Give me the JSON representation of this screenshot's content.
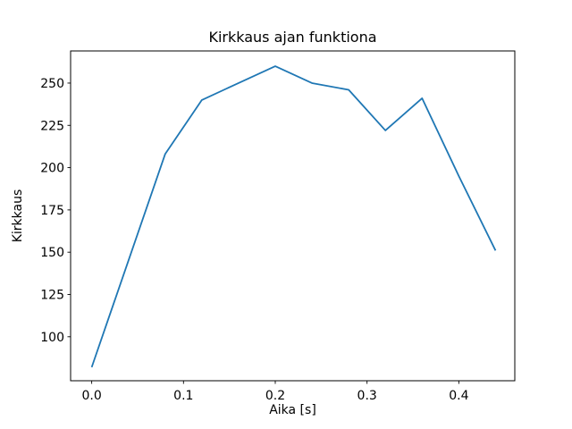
{
  "chart_data": {
    "type": "line",
    "title": "Kirkkaus ajan funktiona",
    "xlabel": "Aika [s]",
    "ylabel": "Kirkkaus",
    "x": [
      0.0,
      0.04,
      0.08,
      0.12,
      0.16,
      0.2,
      0.24,
      0.28,
      0.32,
      0.36,
      0.4,
      0.44
    ],
    "y": [
      82,
      145,
      208,
      240,
      250,
      260,
      250,
      246,
      222,
      241,
      195,
      151
    ],
    "xlim": [
      -0.023,
      0.461
    ],
    "ylim": [
      74,
      269
    ],
    "x_ticks": [
      0.0,
      0.1,
      0.2,
      0.3,
      0.4
    ],
    "x_tick_labels": [
      "0.0",
      "0.1",
      "0.2",
      "0.3",
      "0.4"
    ],
    "y_ticks": [
      100,
      125,
      150,
      175,
      200,
      225,
      250
    ],
    "y_tick_labels": [
      "100",
      "125",
      "150",
      "175",
      "200",
      "225",
      "250"
    ],
    "line_color": "#1f77b4",
    "spine_color": "#000000",
    "grid": false,
    "legend": null
  }
}
